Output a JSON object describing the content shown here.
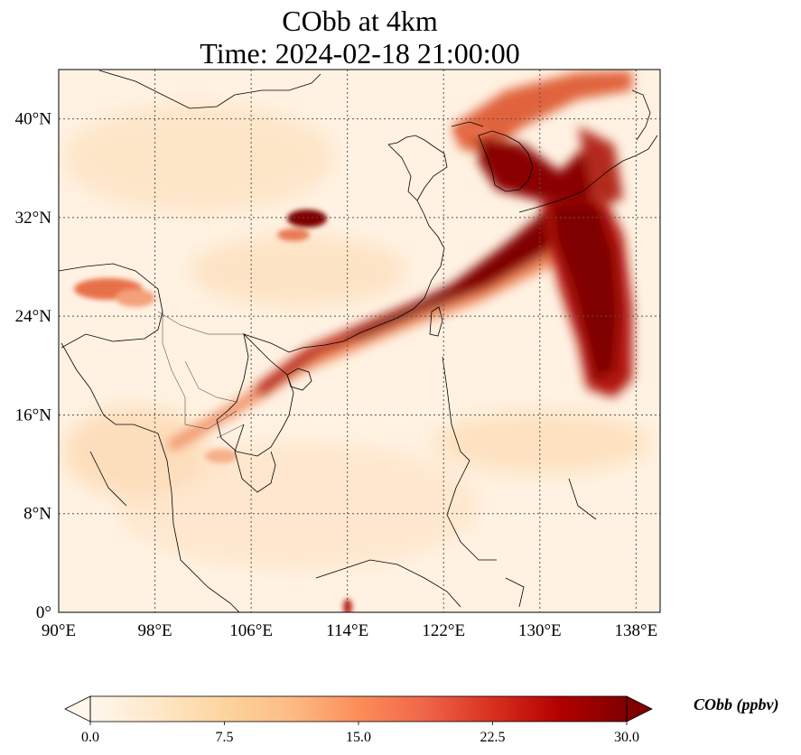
{
  "title": {
    "line1": "CObb at 4km",
    "line2": "Time: 2024-02-18 21:00:00"
  },
  "map": {
    "lon_range": [
      90,
      140
    ],
    "lat_range": [
      0,
      44
    ],
    "x_ticks": [
      {
        "value": 90,
        "label": "90°E"
      },
      {
        "value": 98,
        "label": "98°E"
      },
      {
        "value": 106,
        "label": "106°E"
      },
      {
        "value": 114,
        "label": "114°E"
      },
      {
        "value": 122,
        "label": "122°E"
      },
      {
        "value": 130,
        "label": "130°E"
      },
      {
        "value": 138,
        "label": "138°E"
      }
    ],
    "y_ticks": [
      {
        "value": 0,
        "label": "0°"
      },
      {
        "value": 8,
        "label": "8°N"
      },
      {
        "value": 16,
        "label": "16°N"
      },
      {
        "value": 24,
        "label": "24°N"
      },
      {
        "value": 32,
        "label": "32°N"
      },
      {
        "value": 40,
        "label": "40°N"
      }
    ],
    "gridlines": true,
    "background_color": "#fff5e8"
  },
  "colorbar": {
    "label": "CObb (ppbv)",
    "min": 0.0,
    "max": 30.0,
    "ticks": [
      {
        "value": 0,
        "label": "0.0"
      },
      {
        "value": 7.5,
        "label": "7.5"
      },
      {
        "value": 15,
        "label": "15.0"
      },
      {
        "value": 22.5,
        "label": "22.5"
      },
      {
        "value": 30,
        "label": "30.0"
      }
    ],
    "colormap": "OrRd",
    "extend": "both"
  }
}
